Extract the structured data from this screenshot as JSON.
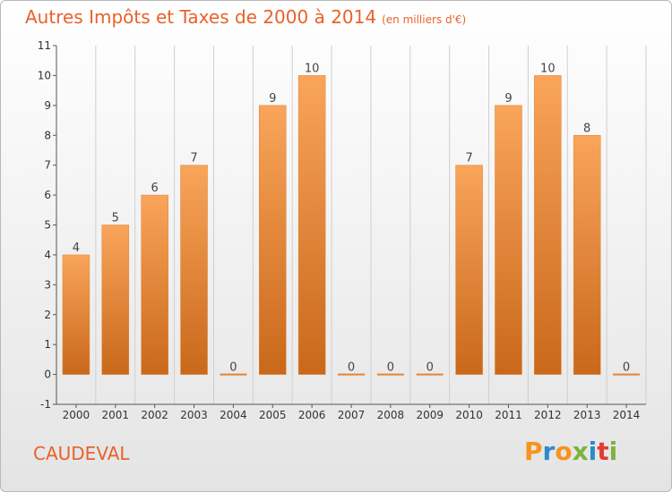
{
  "header": {
    "title": "Autres Impôts et Taxes de 2000 à 2014",
    "subtitle": "(en milliers d'€)"
  },
  "footer": {
    "place": "CAUDEVAL",
    "logo_text": "Proxiti",
    "logo_colors": [
      "#f7941d",
      "#2e8bc9",
      "#f7941d",
      "#7cb342",
      "#2e8bc9",
      "#e53935",
      "#7cb342"
    ]
  },
  "colors": {
    "title": "#e8622a",
    "bar_light": "#f9a55a",
    "bar_dark": "#c9681b",
    "axis": "#555555",
    "grid": "#cfcfcf"
  },
  "chart_data": {
    "type": "bar",
    "categories": [
      "2000",
      "2001",
      "2002",
      "2003",
      "2004",
      "2005",
      "2006",
      "2007",
      "2008",
      "2009",
      "2010",
      "2011",
      "2012",
      "2013",
      "2014"
    ],
    "values": [
      4,
      5,
      6,
      7,
      0,
      9,
      10,
      0,
      0,
      0,
      7,
      9,
      10,
      8,
      0
    ],
    "data_labels": [
      "4",
      "5",
      "6",
      "7",
      "0",
      "9",
      "10",
      "0",
      "0",
      "0",
      "7",
      "9",
      "10",
      "8",
      "0"
    ],
    "ytick_labels": [
      "-1",
      "0",
      "1",
      "2",
      "3",
      "4",
      "5",
      "6",
      "7",
      "8",
      "9",
      "10",
      "11"
    ],
    "ylim": [
      -1,
      11
    ],
    "grid": true,
    "grid_axis": "x"
  }
}
